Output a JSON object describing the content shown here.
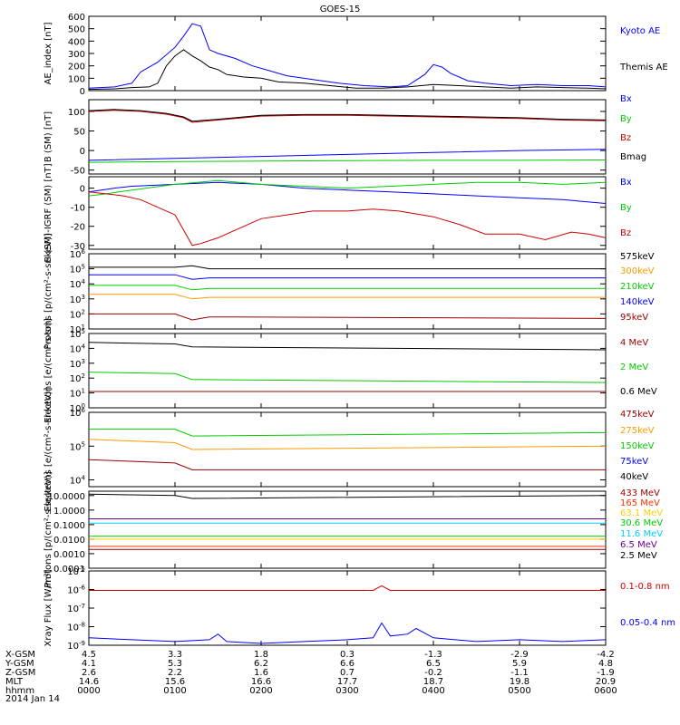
{
  "title": "GOES-15",
  "date_label": "2014 Jan 14",
  "orbit_table": {
    "rows": [
      {
        "label": "X-GSM",
        "values": [
          "4.5",
          "3.3",
          "1.8",
          "0.3",
          "-1.3",
          "-2.9",
          "-4.2"
        ]
      },
      {
        "label": "Y-GSM",
        "values": [
          "4.1",
          "5.3",
          "6.2",
          "6.6",
          "6.5",
          "5.9",
          "4.8"
        ]
      },
      {
        "label": "Z-GSM",
        "values": [
          "2.6",
          "2.2",
          "1.6",
          "0.7",
          "-0.2",
          "-1.1",
          "-1.9"
        ]
      },
      {
        "label": "MLT",
        "values": [
          "14.6",
          "15.6",
          "16.6",
          "17.7",
          "18.7",
          "19.8",
          "20.9"
        ]
      },
      {
        "label": "hhmm",
        "values": [
          "0000",
          "0100",
          "0200",
          "0300",
          "0400",
          "0500",
          "0600"
        ]
      }
    ]
  },
  "chart_data": [
    {
      "type": "line",
      "ylabel": "AE_index [nT]",
      "ylim": [
        0,
        600
      ],
      "yticks": [
        "0",
        "100",
        "200",
        "300",
        "400",
        "500",
        "600"
      ],
      "x_range_hours": [
        0,
        6
      ],
      "series": [
        {
          "name": "Kyoto AE",
          "color": "#0000ff",
          "x": [
            0,
            0.3,
            0.5,
            0.6,
            0.8,
            1.0,
            1.1,
            1.2,
            1.3,
            1.4,
            1.5,
            1.7,
            1.9,
            2.1,
            2.3,
            2.6,
            2.9,
            3.2,
            3.5,
            3.7,
            3.9,
            4.0,
            4.1,
            4.2,
            4.4,
            4.6,
            4.9,
            5.2,
            5.5,
            5.8,
            6.0
          ],
          "values": [
            20,
            30,
            60,
            150,
            230,
            350,
            440,
            540,
            520,
            330,
            300,
            260,
            200,
            160,
            120,
            90,
            60,
            40,
            30,
            40,
            130,
            210,
            190,
            140,
            80,
            60,
            40,
            50,
            40,
            40,
            30
          ]
        },
        {
          "name": "Themis AE",
          "color": "#000000",
          "x": [
            0,
            0.3,
            0.5,
            0.7,
            0.8,
            0.9,
            1.0,
            1.1,
            1.2,
            1.3,
            1.4,
            1.5,
            1.6,
            1.8,
            2.0,
            2.2,
            2.5,
            2.8,
            3.1,
            3.4,
            3.7,
            4.0,
            4.3,
            4.6,
            4.9,
            5.2,
            5.5,
            5.8,
            6.0
          ],
          "values": [
            10,
            15,
            25,
            30,
            60,
            200,
            280,
            330,
            280,
            240,
            190,
            170,
            130,
            110,
            100,
            70,
            60,
            40,
            20,
            20,
            30,
            50,
            40,
            30,
            20,
            30,
            25,
            20,
            15
          ]
        }
      ]
    },
    {
      "type": "line",
      "ylabel": "B (SM) [nT]",
      "ylim": [
        -60,
        130
      ],
      "yticks": [
        "-50",
        "0",
        "50",
        "100"
      ],
      "x_range_hours": [
        0,
        6
      ],
      "series": [
        {
          "name": "Bx",
          "color": "#0000ff",
          "x": [
            0,
            1,
            2,
            3,
            4,
            5,
            6
          ],
          "values": [
            -25,
            -20,
            -15,
            -10,
            -5,
            0,
            3
          ]
        },
        {
          "name": "By",
          "color": "#00cc00",
          "x": [
            0,
            1,
            2,
            3,
            4,
            5,
            6
          ],
          "values": [
            -30,
            -28,
            -27,
            -26,
            -25,
            -25,
            -24
          ]
        },
        {
          "name": "Bz",
          "color": "#cc0000",
          "x": [
            0,
            0.3,
            0.6,
            0.9,
            1.1,
            1.2,
            1.5,
            1.8,
            2.0,
            2.5,
            3.0,
            3.5,
            4.0,
            4.5,
            5.0,
            5.5,
            6.0
          ],
          "values": [
            100,
            103,
            100,
            93,
            84,
            72,
            78,
            84,
            88,
            90,
            90,
            88,
            86,
            84,
            82,
            78,
            76
          ]
        },
        {
          "name": "Bmag",
          "color": "#000000",
          "x": [
            0,
            0.3,
            0.6,
            0.9,
            1.1,
            1.2,
            1.5,
            1.8,
            2.0,
            2.5,
            3.0,
            3.5,
            4.0,
            4.5,
            5.0,
            5.5,
            6.0
          ],
          "values": [
            102,
            105,
            102,
            95,
            86,
            75,
            80,
            86,
            90,
            92,
            92,
            90,
            88,
            86,
            84,
            80,
            78
          ]
        }
      ]
    },
    {
      "type": "line",
      "ylabel": "B (SM)-IGRF (SM) [nT]",
      "ylim": [
        -32,
        6
      ],
      "yticks": [
        "-30",
        "-20",
        "-10",
        "0"
      ],
      "x_range_hours": [
        0,
        6
      ],
      "series": [
        {
          "name": "Bx",
          "color": "#0000ff",
          "x": [
            0,
            0.3,
            0.5,
            1.0,
            1.5,
            2.0,
            2.5,
            3.0,
            3.5,
            4.0,
            4.5,
            5.0,
            5.5,
            6.0
          ],
          "values": [
            -2,
            0,
            1,
            2,
            3,
            2,
            0,
            -1,
            -2,
            -3,
            -4,
            -5,
            -6,
            -8
          ]
        },
        {
          "name": "By",
          "color": "#00cc00",
          "x": [
            0,
            0.2,
            0.5,
            1.0,
            1.5,
            2.0,
            2.5,
            3.0,
            3.5,
            4.0,
            4.5,
            5.0,
            5.5,
            6.0
          ],
          "values": [
            -4,
            -3,
            -1,
            2,
            4,
            2,
            1,
            0,
            1,
            2,
            3,
            3,
            2,
            3
          ]
        },
        {
          "name": "Bz",
          "color": "#cc0000",
          "x": [
            0,
            0.2,
            0.4,
            0.6,
            0.8,
            1.0,
            1.1,
            1.2,
            1.3,
            1.5,
            1.7,
            2.0,
            2.3,
            2.6,
            3.0,
            3.3,
            3.6,
            4.0,
            4.3,
            4.6,
            5.0,
            5.3,
            5.6,
            5.8,
            6.0
          ],
          "values": [
            -2,
            -3,
            -4,
            -6,
            -10,
            -14,
            -22,
            -30,
            -29,
            -26,
            -22,
            -16,
            -14,
            -12,
            -12,
            -11,
            -12,
            -15,
            -19,
            -24,
            -24,
            -27,
            -23,
            -24,
            -26
          ]
        }
      ]
    },
    {
      "type": "line",
      "yscale": "log",
      "ylabel": "Protons [p/(cm²-s-sr-keV)]",
      "ylim_exp": [
        1,
        6
      ],
      "yticks_exp": [
        1,
        2,
        3,
        4,
        5,
        6
      ],
      "x_range_hours": [
        0,
        6
      ],
      "series": [
        {
          "name": "575keV",
          "color": "#000000",
          "x": [
            0,
            1,
            1.2,
            1.4,
            6
          ],
          "log10_values": [
            5.1,
            5.1,
            5.2,
            5.0,
            5.0
          ]
        },
        {
          "name": "300keV",
          "color": "#ff9900",
          "x": [
            0,
            1,
            1.2,
            1.4,
            6
          ],
          "log10_values": [
            3.3,
            3.3,
            3.0,
            3.1,
            3.1
          ]
        },
        {
          "name": "210keV",
          "color": "#00cc00",
          "x": [
            0,
            1,
            1.2,
            1.4,
            6
          ],
          "log10_values": [
            3.9,
            3.9,
            3.6,
            3.7,
            3.7
          ]
        },
        {
          "name": "140keV",
          "color": "#0000ff",
          "x": [
            0,
            1,
            1.2,
            1.4,
            6
          ],
          "log10_values": [
            4.6,
            4.6,
            4.3,
            4.4,
            4.4
          ]
        },
        {
          "name": "95keV",
          "color": "#990000",
          "x": [
            0,
            1,
            1.2,
            1.4,
            6
          ],
          "log10_values": [
            2.0,
            2.0,
            1.6,
            1.8,
            1.7
          ]
        }
      ]
    },
    {
      "type": "line",
      "yscale": "log",
      "ylabel": "Electrons [e/(cm²-s-sr)]",
      "ylim_exp": [
        0,
        5
      ],
      "yticks_exp": [
        0,
        1,
        2,
        3,
        4,
        5
      ],
      "x_range_hours": [
        0,
        6
      ],
      "series": [
        {
          "name": "4 MeV",
          "color": "#990000",
          "x": [
            0,
            6
          ],
          "log10_values": [
            1.1,
            1.1
          ]
        },
        {
          "name": "2 MeV",
          "color": "#00cc00",
          "x": [
            0,
            1,
            1.2,
            6
          ],
          "log10_values": [
            2.4,
            2.3,
            1.9,
            1.7
          ]
        },
        {
          "name": "0.6 MeV",
          "color": "#000000",
          "x": [
            0,
            1,
            1.2,
            6
          ],
          "log10_values": [
            4.4,
            4.3,
            4.1,
            3.9
          ]
        }
      ]
    },
    {
      "type": "line",
      "yscale": "log",
      "ylabel": "Electrons [e/(cm²-s-sr-keV)]",
      "ylim_exp": [
        3.8,
        6
      ],
      "yticks_exp": [
        4,
        5,
        6
      ],
      "x_range_hours": [
        0,
        6
      ],
      "series": [
        {
          "name": "475keV",
          "color": "#990000",
          "x": [
            0,
            1,
            1.2,
            6
          ],
          "log10_values": [
            4.6,
            4.5,
            4.3,
            4.3
          ]
        },
        {
          "name": "275keV",
          "color": "#ff9900",
          "x": [
            0,
            1,
            1.2,
            6
          ],
          "log10_values": [
            5.2,
            5.1,
            4.9,
            5.0
          ]
        },
        {
          "name": "150keV",
          "color": "#00cc00",
          "x": [
            0,
            1,
            1.2,
            6
          ],
          "log10_values": [
            5.5,
            5.5,
            5.3,
            5.4
          ]
        },
        {
          "name": "75keV",
          "color": "#0000ff",
          "x": [
            0,
            6
          ],
          "log10_values": [
            6.0,
            6.0
          ]
        },
        {
          "name": "40keV",
          "color": "#000000",
          "x": [
            0,
            6
          ],
          "log10_values": [
            6.0,
            6.0
          ]
        }
      ]
    },
    {
      "type": "line",
      "yscale": "log",
      "ylabel": "Protons [p/(cm²-s-sr-keV)]",
      "ylim_exp": [
        -4,
        1.3
      ],
      "ytick_labels": [
        "0.0001",
        "0.0010",
        "0.0100",
        "0.1000",
        "1.0000",
        "10.0000"
      ],
      "x_range_hours": [
        0,
        6
      ],
      "series": [
        {
          "name": "433 MeV",
          "color": "#990000",
          "x": [
            0,
            6
          ],
          "log10_values": [
            -2.7,
            -2.7
          ]
        },
        {
          "name": "165 MeV",
          "color": "#ff3300",
          "x": [
            0,
            6
          ],
          "log10_values": [
            -2.5,
            -2.5
          ]
        },
        {
          "name": "63.1 MeV",
          "color": "#ffcc00",
          "x": [
            0,
            6
          ],
          "log10_values": [
            -2.0,
            -2.0
          ]
        },
        {
          "name": "30.6 MeV",
          "color": "#00cc00",
          "x": [
            0,
            6
          ],
          "log10_values": [
            -1.8,
            -1.8
          ]
        },
        {
          "name": "11.6 MeV",
          "color": "#00ccff",
          "x": [
            0,
            6
          ],
          "log10_values": [
            -0.9,
            -0.9
          ]
        },
        {
          "name": "6.5 MeV",
          "color": "#660099",
          "x": [
            0,
            6
          ],
          "log10_values": [
            -0.6,
            -0.6
          ]
        },
        {
          "name": "2.5 MeV",
          "color": "#000000",
          "x": [
            0,
            1,
            1.2,
            6
          ],
          "log10_values": [
            1.1,
            1.0,
            0.8,
            1.0
          ]
        }
      ]
    },
    {
      "type": "line",
      "yscale": "log",
      "ylabel": "Xray Flux [W/m²]",
      "ylim_exp": [
        -9,
        -5
      ],
      "yticks_exp": [
        -9,
        -8,
        -7,
        -6,
        -5
      ],
      "x_range_hours": [
        0,
        6
      ],
      "series": [
        {
          "name": "0.1-0.8 nm",
          "color": "#cc0000",
          "x": [
            0,
            3.3,
            3.4,
            3.5,
            6
          ],
          "log10_values": [
            -6.05,
            -6.05,
            -5.8,
            -6.05,
            -6.05
          ]
        },
        {
          "name": "0.05-0.4 nm",
          "color": "#0000ff",
          "x": [
            0,
            0.5,
            1.0,
            1.4,
            1.5,
            1.6,
            2.0,
            2.5,
            3.0,
            3.3,
            3.4,
            3.5,
            3.7,
            3.8,
            4.0,
            4.5,
            5.0,
            5.5,
            6.0
          ],
          "log10_values": [
            -8.6,
            -8.7,
            -8.8,
            -8.7,
            -8.4,
            -8.8,
            -8.9,
            -8.8,
            -8.7,
            -8.6,
            -7.8,
            -8.5,
            -8.4,
            -8.1,
            -8.6,
            -8.8,
            -8.7,
            -8.8,
            -8.7
          ]
        }
      ]
    }
  ]
}
